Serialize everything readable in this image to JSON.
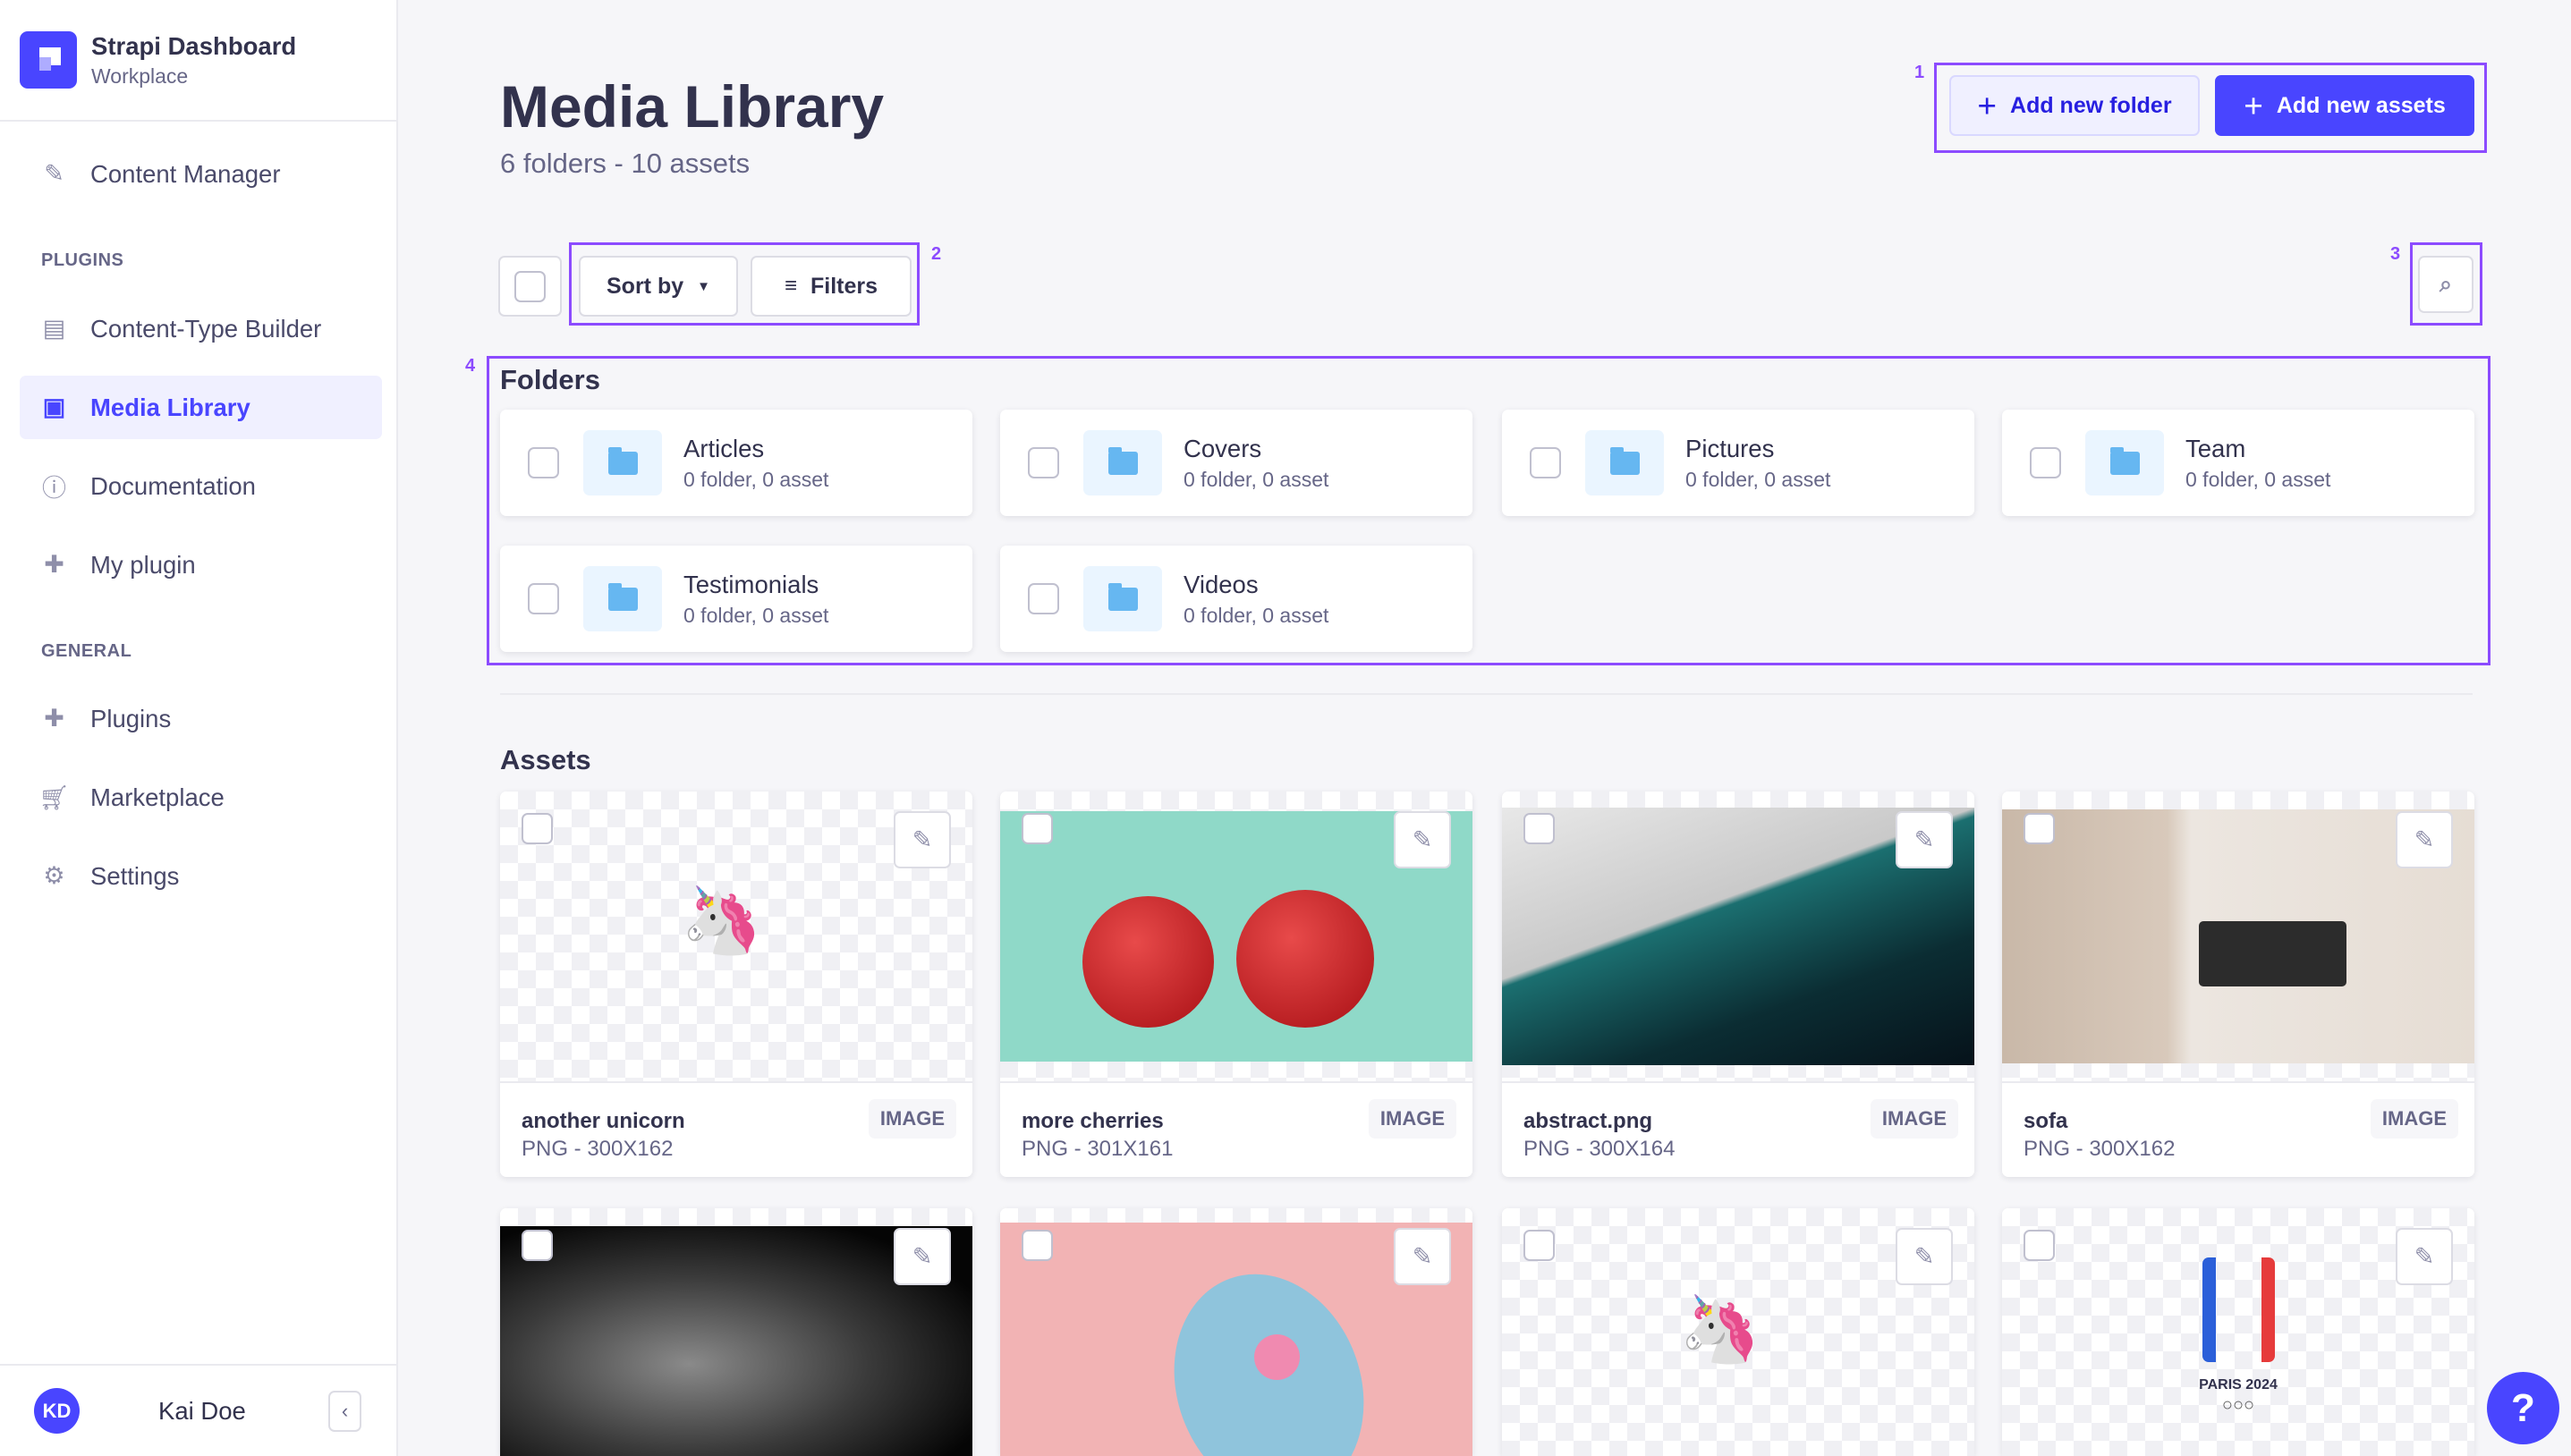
{
  "brand": {
    "title": "Strapi Dashboard",
    "subtitle": "Workplace"
  },
  "nav": {
    "content_manager": "Content Manager",
    "plugins_heading": "PLUGINS",
    "plugins": [
      {
        "label": "Content-Type Builder",
        "icon": "layout-icon"
      },
      {
        "label": "Media Library",
        "icon": "image-icon",
        "active": true
      },
      {
        "label": "Documentation",
        "icon": "info-icon"
      },
      {
        "label": "My plugin",
        "icon": "puzzle-icon"
      }
    ],
    "general_heading": "GENERAL",
    "general": [
      {
        "label": "Plugins",
        "icon": "puzzle-icon"
      },
      {
        "label": "Marketplace",
        "icon": "cart-icon"
      },
      {
        "label": "Settings",
        "icon": "gear-icon"
      }
    ]
  },
  "user": {
    "initials": "KD",
    "name": "Kai Doe"
  },
  "header": {
    "title": "Media Library",
    "subtitle": "6 folders - 10 assets",
    "add_folder": "Add new folder",
    "add_assets": "Add new assets"
  },
  "toolbar": {
    "sort_by": "Sort by",
    "filters": "Filters"
  },
  "annotations": [
    "1",
    "2",
    "3",
    "4"
  ],
  "folders": {
    "heading": "Folders",
    "items": [
      {
        "name": "Articles",
        "meta": "0 folder, 0 asset"
      },
      {
        "name": "Covers",
        "meta": "0 folder, 0 asset"
      },
      {
        "name": "Pictures",
        "meta": "0 folder, 0 asset"
      },
      {
        "name": "Team",
        "meta": "0 folder, 0 asset"
      },
      {
        "name": "Testimonials",
        "meta": "0 folder, 0 asset"
      },
      {
        "name": "Videos",
        "meta": "0 folder, 0 asset"
      }
    ]
  },
  "assets": {
    "heading": "Assets",
    "items": [
      {
        "name": "another unicorn",
        "meta": "PNG - 300X162",
        "type": "IMAGE"
      },
      {
        "name": "more cherries",
        "meta": "PNG - 301X161",
        "type": "IMAGE"
      },
      {
        "name": "abstract.png",
        "meta": "PNG - 300X164",
        "type": "IMAGE"
      },
      {
        "name": "sofa",
        "meta": "PNG - 300X162",
        "type": "IMAGE"
      }
    ],
    "second_row_logo_text": "PARIS 2024"
  },
  "colors": {
    "primary": "#4945ff",
    "annotation": "#8c4bff",
    "folder_icon": "#66b7f1"
  }
}
